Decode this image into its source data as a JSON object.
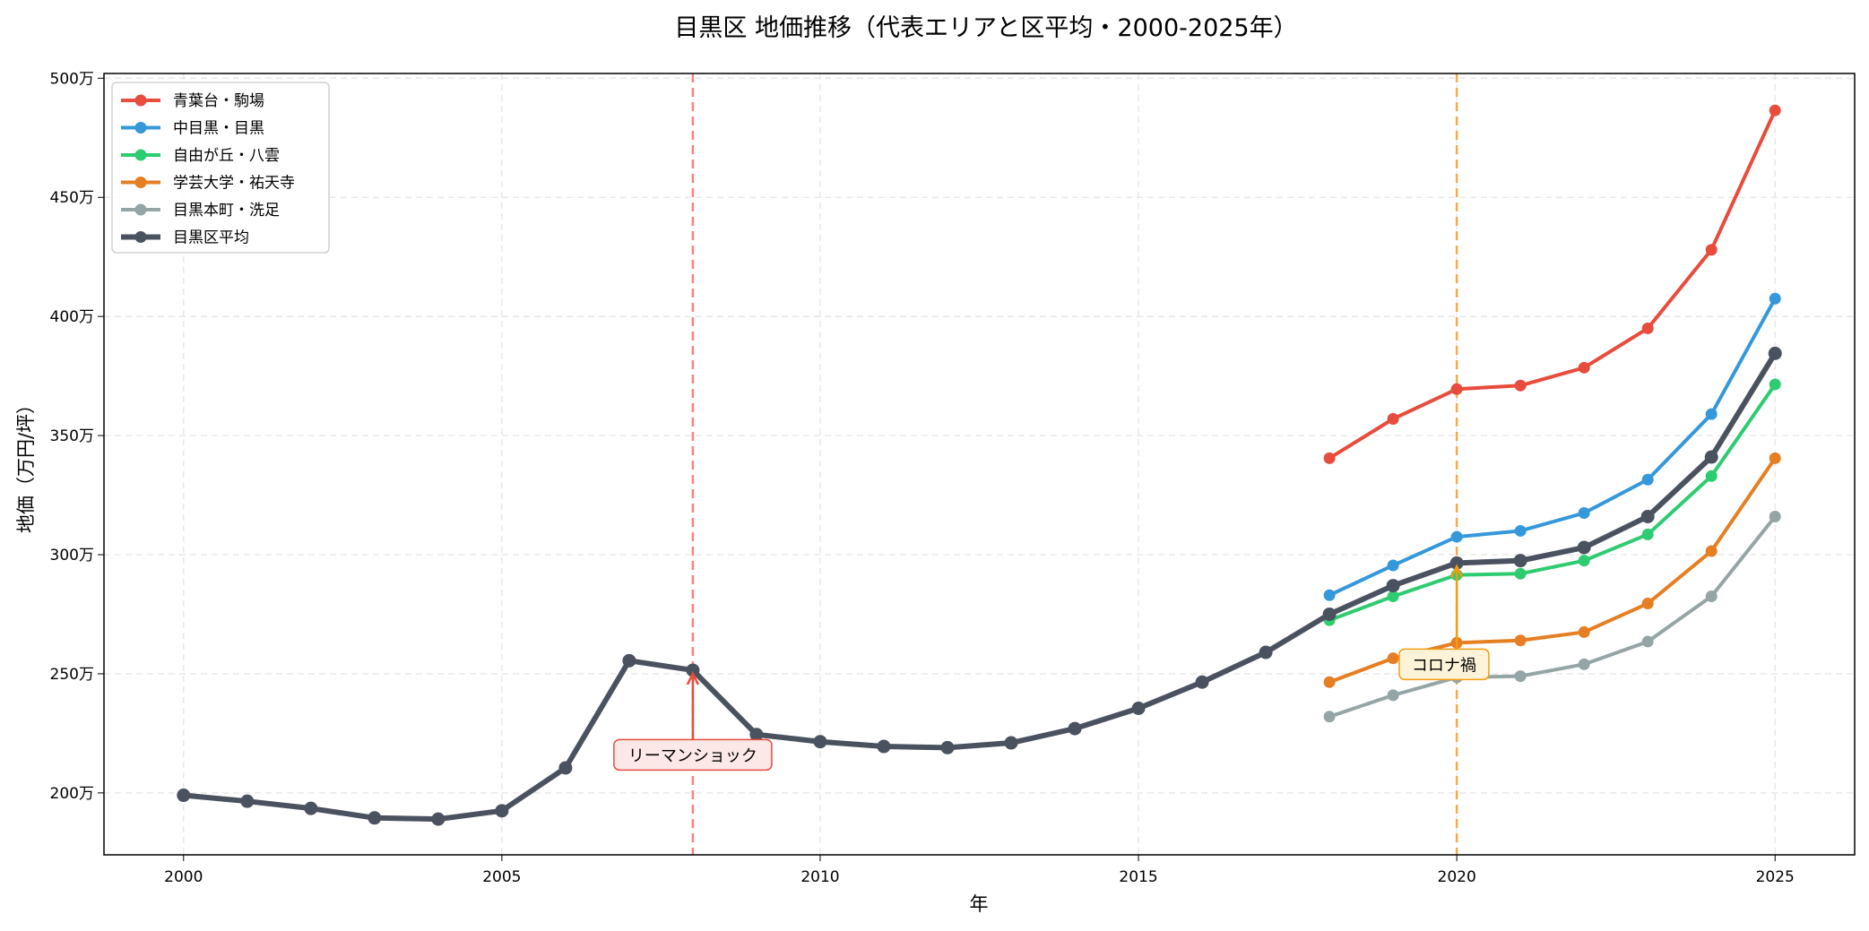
{
  "chart_data": {
    "type": "line",
    "title": "目黒区 地価推移（代表エリアと区平均・2000-2025年）",
    "xlabel": "年",
    "ylabel": "地価（万円/坪）",
    "xlim": [
      1998.75,
      2026.25
    ],
    "ylim": [
      174,
      502
    ],
    "xticks": [
      2000,
      2005,
      2010,
      2015,
      2020,
      2025
    ],
    "yticks": [
      200,
      250,
      300,
      350,
      400,
      450,
      500
    ],
    "ytick_labels": [
      "200万",
      "250万",
      "300万",
      "350万",
      "400万",
      "450万",
      "500万"
    ],
    "grid": true,
    "legend_position": "top-left",
    "series": [
      {
        "name": "青葉台・駒場",
        "color": "#e74c3c",
        "x": [
          2018,
          2019,
          2020,
          2021,
          2022,
          2023,
          2024,
          2025
        ],
        "values": [
          340.5,
          357,
          369.5,
          371,
          378.5,
          395,
          428,
          486.5
        ]
      },
      {
        "name": "中目黒・目黒",
        "color": "#3498db",
        "x": [
          2018,
          2019,
          2020,
          2021,
          2022,
          2023,
          2024,
          2025
        ],
        "values": [
          283,
          295.5,
          307.5,
          310,
          317.5,
          331.5,
          359,
          407.5
        ]
      },
      {
        "name": "自由が丘・八雲",
        "color": "#2ecc71",
        "x": [
          2018,
          2019,
          2020,
          2021,
          2022,
          2023,
          2024,
          2025
        ],
        "values": [
          272.5,
          282.5,
          291.5,
          292,
          297.5,
          308.5,
          333,
          371.5
        ]
      },
      {
        "name": "学芸大学・祐天寺",
        "color": "#e67e22",
        "x": [
          2018,
          2019,
          2020,
          2021,
          2022,
          2023,
          2024,
          2025
        ],
        "values": [
          246.5,
          256.5,
          263,
          264,
          267.5,
          279.5,
          301.5,
          340.5
        ]
      },
      {
        "name": "目黒本町・洗足",
        "color": "#95a5a6",
        "x": [
          2018,
          2019,
          2020,
          2021,
          2022,
          2023,
          2024,
          2025
        ],
        "values": [
          232,
          241,
          248.5,
          249,
          254,
          263.5,
          282.5,
          316
        ]
      },
      {
        "name": "目黒区平均",
        "color": "#4a5260",
        "x": [
          2000,
          2001,
          2002,
          2003,
          2004,
          2005,
          2006,
          2007,
          2008,
          2009,
          2010,
          2011,
          2012,
          2013,
          2014,
          2015,
          2016,
          2017,
          2018,
          2019,
          2020,
          2021,
          2022,
          2023,
          2024,
          2025
        ],
        "values": [
          199,
          196.5,
          193.5,
          189.5,
          189,
          192.5,
          210.5,
          255.5,
          251.5,
          224.5,
          221.5,
          219.5,
          219,
          221,
          227,
          235.5,
          246.5,
          259,
          275,
          287,
          296.5,
          297.5,
          303,
          316,
          341,
          384.5
        ]
      }
    ],
    "vlines": [
      {
        "x": 2008,
        "color": "#ff6b6b"
      },
      {
        "x": 2020,
        "color": "#f0a030"
      }
    ],
    "annotations": [
      {
        "text": "リーマンショック",
        "x": 2008,
        "y": 251.5,
        "text_x": 2008,
        "text_y": 216,
        "color": "#e74c3c",
        "bg": "#fde8e8"
      },
      {
        "text": "コロナ禍",
        "x": 2020,
        "y": 296.5,
        "text_x": 2019.8,
        "text_y": 254,
        "color": "#f39c12",
        "bg": "#fdf3d8"
      }
    ]
  }
}
